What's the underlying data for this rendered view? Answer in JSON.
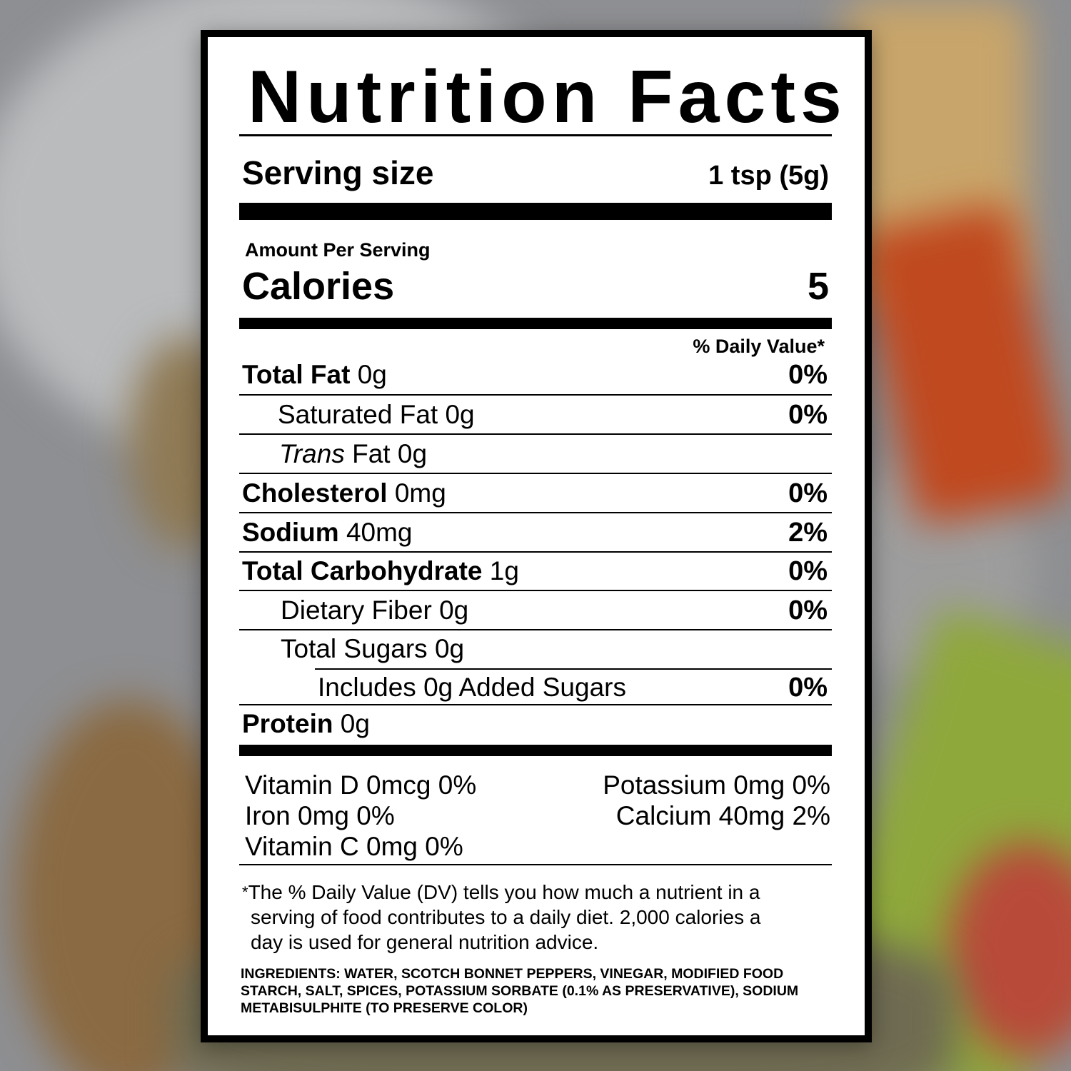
{
  "label": {
    "title": "Nutrition Facts",
    "serving_size_label": "Serving size",
    "serving_size_value": "1 tsp (5g)",
    "amount_per_serving": "Amount Per Serving",
    "calories_label": "Calories",
    "calories_value": "5",
    "daily_value_header": "% Daily Value*",
    "nutrients": [
      {
        "name": "Total Fat",
        "amount": "0g",
        "dv": "0%"
      },
      {
        "name": "Saturated Fat",
        "amount": "0g",
        "dv": "0%"
      },
      {
        "name_italic": "Trans",
        "name": "Fat",
        "amount": "0g",
        "dv": ""
      },
      {
        "name": "Cholesterol",
        "amount": "0mg",
        "dv": "0%"
      },
      {
        "name": "Sodium",
        "amount": "40mg",
        "dv": "2%"
      },
      {
        "name": "Total Carbohydrate",
        "amount": "1g",
        "dv": "0%"
      },
      {
        "name": "Dietary Fiber",
        "amount": "0g",
        "dv": "0%"
      },
      {
        "name": "Total Sugars",
        "amount": "0g",
        "dv": ""
      },
      {
        "name": "Includes 0g Added Sugars",
        "amount": "",
        "dv": "0%"
      },
      {
        "name": "Protein",
        "amount": "0g",
        "dv": ""
      }
    ],
    "vitamins_left": [
      "Vitamin D 0mcg  0%",
      "Iron 0mg  0%",
      "Vitamin C 0mg  0%"
    ],
    "vitamins_right": [
      "Potassium 0mg 0%",
      "Calcium 40mg 2%"
    ],
    "footnote_asterisk": "*",
    "footnote_lines": [
      "The % Daily Value (DV) tells you how much a nutrient in a",
      "serving of food contributes to a daily diet. 2,000 calories a",
      "day is used for general nutrition advice."
    ],
    "ingredients": "INGREDIENTS: WATER, SCOTCH BONNET PEPPERS, VINEGAR,  MODIFIED FOOD STARCH, SALT, SPICES, POTASSIUM SORBATE (0.1% AS PRESERVATIVE), SODIUM METABISULPHITE (TO PRESERVE COLOR)"
  }
}
